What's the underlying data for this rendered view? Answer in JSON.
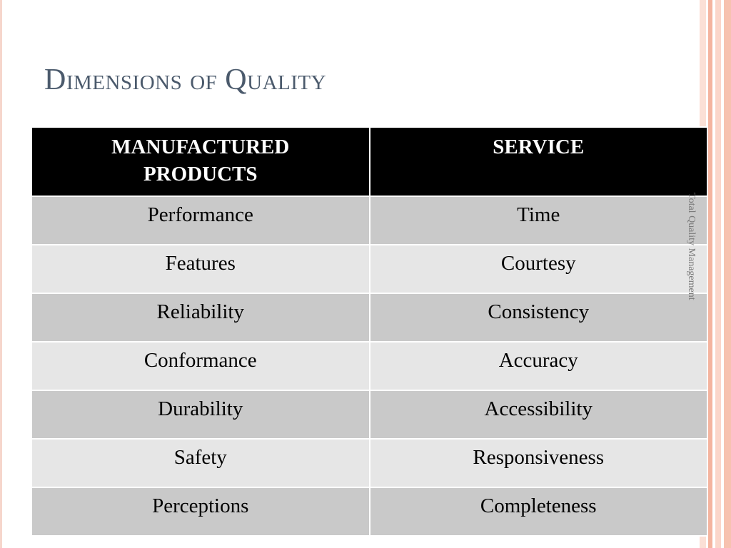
{
  "header": {
    "title": "Dimensions of Quality"
  },
  "sidebar": {
    "text": "Total Quality Management"
  },
  "table": {
    "columns": [
      "MANUFACTURED PRODUCTS",
      "SERVICE"
    ],
    "rows": [
      [
        "Performance",
        "Time"
      ],
      [
        "Features",
        "Courtesy"
      ],
      [
        "Reliability",
        "Consistency"
      ],
      [
        "Conformance",
        "Accuracy"
      ],
      [
        "Durability",
        "Accessibility"
      ],
      [
        "Safety",
        "Responsiveness"
      ],
      [
        "Perceptions",
        "Completeness"
      ]
    ]
  }
}
